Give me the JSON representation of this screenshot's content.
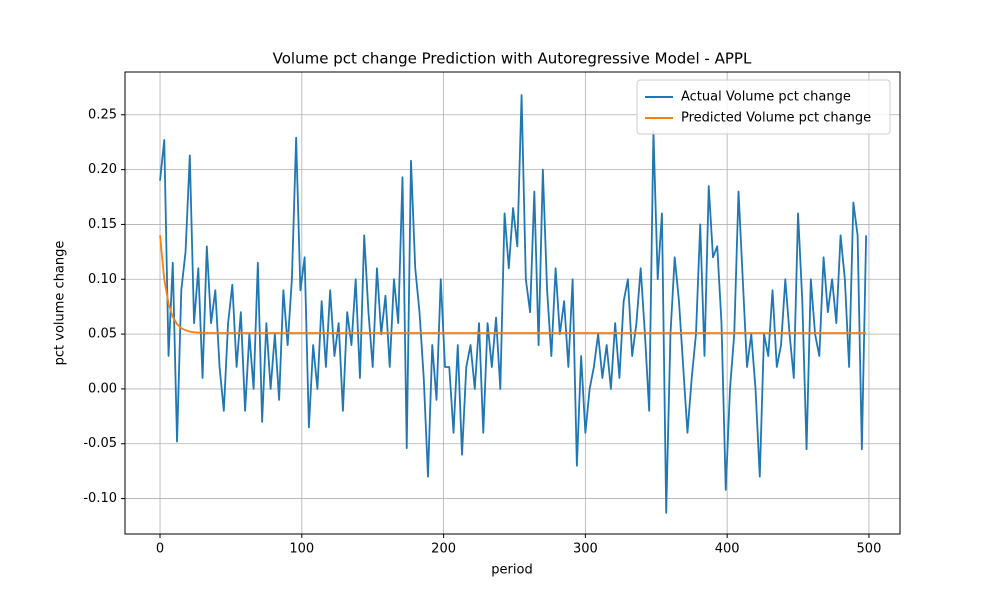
{
  "chart_data": {
    "type": "line",
    "title": "Volume pct change Prediction with Autoregressive Model - APPL",
    "x_label": "period",
    "y_label": "pct volume change",
    "x": [
      0,
      3,
      6,
      9,
      12,
      15,
      18,
      21,
      24,
      27,
      30,
      33,
      36,
      39,
      42,
      45,
      48,
      51,
      54,
      57,
      60,
      63,
      66,
      69,
      72,
      75,
      78,
      81,
      84,
      87,
      90,
      93,
      96,
      99,
      102,
      105,
      108,
      111,
      114,
      117,
      120,
      123,
      126,
      129,
      132,
      135,
      138,
      141,
      144,
      147,
      150,
      153,
      156,
      159,
      162,
      165,
      168,
      171,
      174,
      177,
      180,
      183,
      186,
      189,
      192,
      195,
      198,
      201,
      204,
      207,
      210,
      213,
      216,
      219,
      222,
      225,
      228,
      231,
      234,
      237,
      240,
      243,
      246,
      249,
      252,
      255,
      258,
      261,
      264,
      267,
      270,
      273,
      276,
      279,
      282,
      285,
      288,
      291,
      294,
      297,
      300,
      303,
      306,
      309,
      312,
      315,
      318,
      321,
      324,
      327,
      330,
      333,
      336,
      339,
      342,
      345,
      348,
      351,
      354,
      357,
      360,
      363,
      366,
      369,
      372,
      375,
      378,
      381,
      384,
      387,
      390,
      393,
      396,
      399,
      402,
      405,
      408,
      411,
      414,
      417,
      420,
      423,
      426,
      429,
      432,
      435,
      438,
      441,
      444,
      447,
      450,
      453,
      456,
      459,
      462,
      465,
      468,
      471,
      474,
      477,
      480,
      483,
      486,
      489,
      492,
      495,
      498
    ],
    "series": [
      {
        "name": "Actual Volume pct change",
        "color": "#1f77b4",
        "values": [
          0.19,
          0.227,
          0.03,
          0.115,
          -0.048,
          0.09,
          0.125,
          0.213,
          0.06,
          0.11,
          0.01,
          0.13,
          0.06,
          0.09,
          0.02,
          -0.02,
          0.06,
          0.095,
          0.02,
          0.07,
          -0.02,
          0.05,
          0.0,
          0.115,
          -0.03,
          0.06,
          0.0,
          0.05,
          -0.01,
          0.09,
          0.04,
          0.1,
          0.229,
          0.09,
          0.12,
          -0.035,
          0.04,
          0.0,
          0.08,
          0.02,
          0.09,
          0.03,
          0.06,
          -0.02,
          0.07,
          0.04,
          0.1,
          0.01,
          0.14,
          0.07,
          0.02,
          0.11,
          0.05,
          0.085,
          0.02,
          0.1,
          0.06,
          0.193,
          -0.054,
          0.208,
          0.11,
          0.07,
          0.01,
          -0.08,
          0.04,
          -0.01,
          0.1,
          0.02,
          0.02,
          -0.04,
          0.04,
          -0.06,
          0.02,
          0.04,
          0.0,
          0.06,
          -0.04,
          0.06,
          0.02,
          0.065,
          0.0,
          0.16,
          0.11,
          0.165,
          0.13,
          0.268,
          0.1,
          0.07,
          0.18,
          0.04,
          0.2,
          0.09,
          0.03,
          0.11,
          0.05,
          0.08,
          0.02,
          0.1,
          -0.07,
          0.03,
          -0.04,
          0.0,
          0.02,
          0.05,
          0.01,
          0.04,
          0.0,
          0.06,
          0.01,
          0.08,
          0.1,
          0.03,
          0.06,
          0.11,
          0.05,
          -0.02,
          0.235,
          0.1,
          0.16,
          -0.113,
          0.05,
          0.12,
          0.08,
          0.02,
          -0.04,
          0.01,
          0.05,
          0.15,
          0.03,
          0.185,
          0.12,
          0.13,
          0.06,
          -0.092,
          0.0,
          0.05,
          0.18,
          0.1,
          0.02,
          0.05,
          0.0,
          -0.08,
          0.05,
          0.03,
          0.09,
          0.02,
          0.04,
          0.1,
          0.05,
          0.01,
          0.16,
          0.08,
          -0.055,
          0.1,
          0.05,
          0.03,
          0.12,
          0.07,
          0.1,
          0.06,
          0.14,
          0.1,
          0.02,
          0.17,
          0.14,
          -0.055,
          0.14
        ]
      },
      {
        "name": "Predicted Volume pct change",
        "color": "#ff7f0e",
        "values": [
          0.14,
          0.0999,
          0.0778,
          0.0657,
          0.0591,
          0.0554,
          0.0535,
          0.0523,
          0.0517,
          0.0514,
          0.0512,
          0.051,
          0.051,
          0.051,
          0.051,
          0.051,
          0.051,
          0.051,
          0.051,
          0.051,
          0.051,
          0.051,
          0.051,
          0.051,
          0.051,
          0.051,
          0.051,
          0.051,
          0.051,
          0.051,
          0.051,
          0.051,
          0.051,
          0.051,
          0.051,
          0.051,
          0.051,
          0.051,
          0.051,
          0.051,
          0.051,
          0.051,
          0.051,
          0.051,
          0.051,
          0.051,
          0.051,
          0.051,
          0.051,
          0.051,
          0.051,
          0.051,
          0.051,
          0.051,
          0.051,
          0.051,
          0.051,
          0.051,
          0.051,
          0.051,
          0.051,
          0.051,
          0.051,
          0.051,
          0.051,
          0.051,
          0.051,
          0.051,
          0.051,
          0.051,
          0.051,
          0.051,
          0.051,
          0.051,
          0.051,
          0.051,
          0.051,
          0.051,
          0.051,
          0.051,
          0.051,
          0.051,
          0.051,
          0.051,
          0.051,
          0.051,
          0.051,
          0.051,
          0.051,
          0.051,
          0.051,
          0.051,
          0.051,
          0.051,
          0.051,
          0.051,
          0.051,
          0.051,
          0.051,
          0.051,
          0.051,
          0.051,
          0.051,
          0.051,
          0.051,
          0.051,
          0.051,
          0.051,
          0.051,
          0.051,
          0.051,
          0.051,
          0.051,
          0.051,
          0.051,
          0.051,
          0.051,
          0.051,
          0.051,
          0.051,
          0.051,
          0.051,
          0.051,
          0.051,
          0.051,
          0.051,
          0.051,
          0.051,
          0.051,
          0.051,
          0.051,
          0.051,
          0.051,
          0.051,
          0.051,
          0.051,
          0.051,
          0.051,
          0.051,
          0.051,
          0.051,
          0.051,
          0.051,
          0.051,
          0.051,
          0.051,
          0.051,
          0.051,
          0.051,
          0.051,
          0.051,
          0.051,
          0.051,
          0.051,
          0.051,
          0.051,
          0.051,
          0.051,
          0.051,
          0.051,
          0.051,
          0.051,
          0.051,
          0.051,
          0.051,
          0.051,
          0.051
        ]
      }
    ],
    "xlim": [
      -24.7,
      521.9
    ],
    "ylim": [
      -0.1323,
      0.289
    ],
    "xticks": [
      0,
      100,
      200,
      300,
      400,
      500
    ],
    "yticks": [
      {
        "value": -0.1,
        "label": "-0.10"
      },
      -0.05,
      {
        "value": 0,
        "label": "0.00"
      },
      0.05,
      {
        "value": 0.1,
        "label": "0.10"
      },
      0.15,
      {
        "value": 0.2,
        "label": "0.20"
      },
      0.25
    ],
    "grid": true,
    "legend": "upper right"
  }
}
